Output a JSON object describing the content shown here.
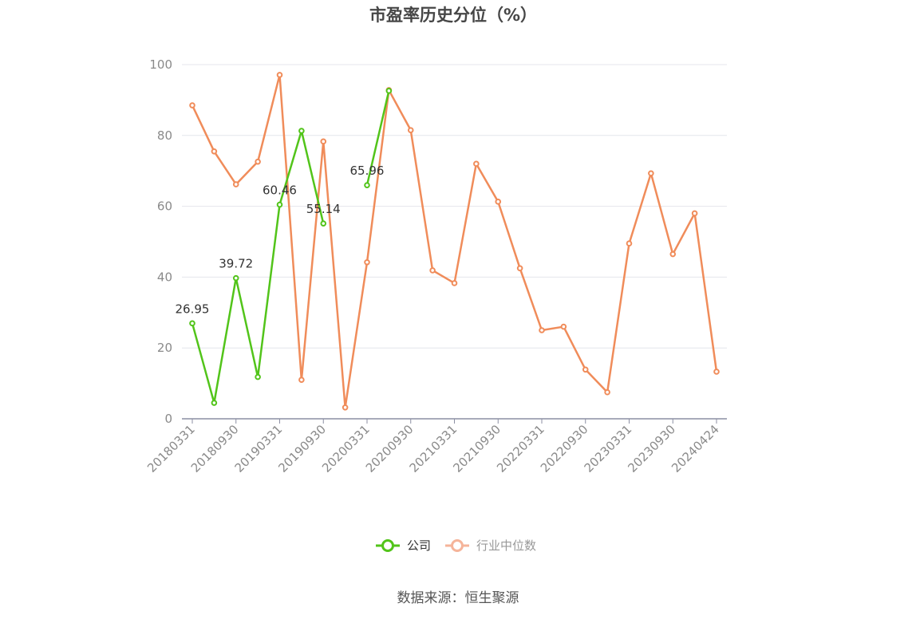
{
  "chart_data": {
    "type": "line",
    "title": "市盈率历史分位（%）",
    "ylim": [
      0,
      100
    ],
    "yticks": [
      0,
      20,
      40,
      60,
      80,
      100
    ],
    "x": [
      "20180331",
      "20180630",
      "20180930",
      "20181231",
      "20190331",
      "20190630",
      "20190930",
      "20191231",
      "20200331",
      "20200630",
      "20200930",
      "20201231",
      "20210331",
      "20210630",
      "20210930",
      "20211231",
      "20220331",
      "20220630",
      "20220930",
      "20221231",
      "20230331",
      "20230630",
      "20230930",
      "20231231",
      "20240424"
    ],
    "xtick_labels": [
      "20180331",
      "20180930",
      "20190331",
      "20190930",
      "20200331",
      "20200930",
      "20210331",
      "20210930",
      "20220331",
      "20220930",
      "20230331",
      "20230930",
      "20240424"
    ],
    "grid": true,
    "legend_position": "bottom",
    "series": [
      {
        "name": "公司",
        "color": "#52c41a",
        "values": [
          26.95,
          4.5,
          39.72,
          11.8,
          60.46,
          81.3,
          55.14,
          null,
          65.96,
          92.6,
          null,
          null,
          null,
          null,
          null,
          null,
          null,
          null,
          null,
          null,
          null,
          null,
          null,
          null,
          null
        ],
        "labels": [
          "26.95",
          null,
          "39.72",
          null,
          "60.46",
          null,
          "55.14",
          null,
          "65.96",
          null,
          null,
          null,
          null,
          null,
          null,
          null,
          null,
          null,
          null,
          null,
          null,
          null,
          null,
          null,
          null
        ]
      },
      {
        "name": "行业中位数",
        "color": "#f08c5a",
        "values": [
          88.5,
          75.5,
          66.2,
          72.6,
          97.1,
          11.0,
          78.3,
          3.2,
          44.2,
          92.8,
          81.5,
          41.9,
          38.3,
          72.0,
          61.3,
          42.5,
          25.0,
          26.0,
          13.9,
          7.5,
          49.5,
          69.3,
          46.5,
          58.0,
          13.3
        ]
      }
    ]
  },
  "legend": {
    "items": [
      {
        "label": "公司",
        "color": "#52c41a"
      },
      {
        "label": "行业中位数",
        "color": "#f5b49a"
      }
    ]
  },
  "source": "数据来源：恒生聚源"
}
